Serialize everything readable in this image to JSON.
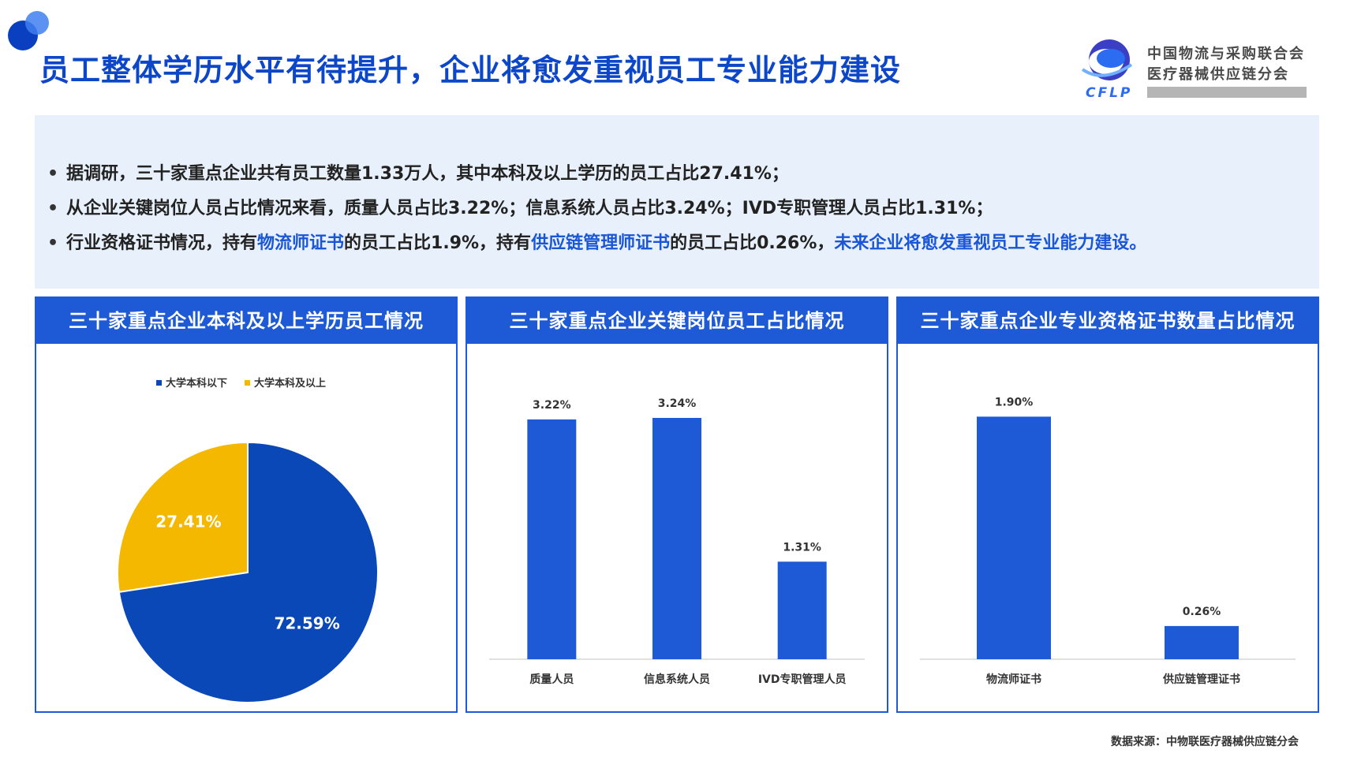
{
  "title": "员工整体学历水平有待提升，企业将愈发重视员工专业能力建设",
  "logo": {
    "org_line1": "中国物流与采购联合会",
    "org_line2": "医疗器械供应链分会",
    "brand": "CFLP"
  },
  "summary": {
    "bullet_marker": "•",
    "bullet1": "据调研，三十家重点企业共有员工数量1.33万人，其中本科及以上学历的员工占比27.41%；",
    "bullet2": "从企业关键岗位人员占比情况来看，质量人员占比3.22%；信息系统人员占比3.24%；IVD专职管理人员占比1.31%；",
    "bullet3": {
      "part1": "行业资格证书情况，持有",
      "hl1": "物流师证书",
      "part2": "的员工占比1.9%，持有",
      "hl2": "供应链管理师证书",
      "part3": "的员工占比0.26%，",
      "hl3": "未来企业将愈发重视员工专业能力建设。"
    }
  },
  "colors": {
    "blue": "#1f5ad6",
    "pie_blue": "#0a48b8",
    "pie_yellow": "#f5b800",
    "highlight": "#1a56d8"
  },
  "source": "数据来源：中物联医疗器械供应链分会",
  "chart_data": [
    {
      "type": "pie",
      "title": "三十家重点企业本科及以上学历员工情况",
      "legend_position": "top",
      "slices": [
        {
          "name": "大学本科以下",
          "value": 72.59,
          "label": "72.59%",
          "color": "#0a48b8"
        },
        {
          "name": "大学本科及以上",
          "value": 27.41,
          "label": "27.41%",
          "color": "#f5b800"
        }
      ]
    },
    {
      "type": "bar",
      "title": "三十家重点企业关键岗位员工占比情况",
      "categories": [
        "质量人员",
        "信息系统人员",
        "IVD专职管理人员"
      ],
      "values": [
        3.22,
        3.24,
        1.31
      ],
      "labels": [
        "3.22%",
        "3.24%",
        "1.31%"
      ],
      "ylim": [
        0,
        3.6
      ],
      "color": "#1f5ad6"
    },
    {
      "type": "bar",
      "title": "三十家重点企业专业资格证书数量占比情况",
      "categories": [
        "物流师证书",
        "供应链管理证书"
      ],
      "values": [
        1.9,
        0.26
      ],
      "labels": [
        "1.90%",
        "0.26%"
      ],
      "ylim": [
        0,
        2.1
      ],
      "color": "#1f5ad6"
    }
  ]
}
